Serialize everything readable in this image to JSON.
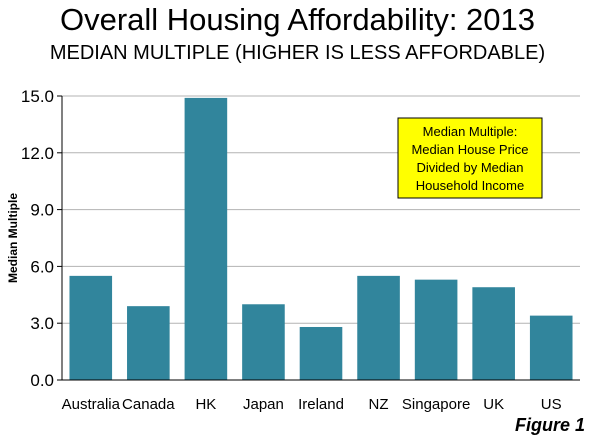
{
  "chart_data": {
    "type": "bar",
    "title": "Overall Housing Affordability: 2013",
    "subtitle": "MEDIAN MULTIPLE (HIGHER IS LESS AFFORDABLE)",
    "xlabel": "",
    "ylabel": "Median Multiple",
    "ylim": [
      0,
      15
    ],
    "yticks": [
      "0.0",
      "3.0",
      "6.0",
      "9.0",
      "12.0",
      "15.0"
    ],
    "categories": [
      "Australia",
      "Canada",
      "HK",
      "Japan",
      "Ireland",
      "NZ",
      "Singapore",
      "UK",
      "US"
    ],
    "values": [
      5.5,
      3.9,
      14.9,
      4.0,
      2.8,
      5.5,
      5.3,
      4.9,
      3.4
    ],
    "grid": true,
    "bar_color": "#31859C",
    "annotation": {
      "lines": [
        "Median Multiple:",
        "Median House Price",
        "Divided by Median",
        "Household Income"
      ],
      "background": "#FFFF00",
      "placement": "top-right"
    }
  },
  "figure_label": "Figure 1"
}
